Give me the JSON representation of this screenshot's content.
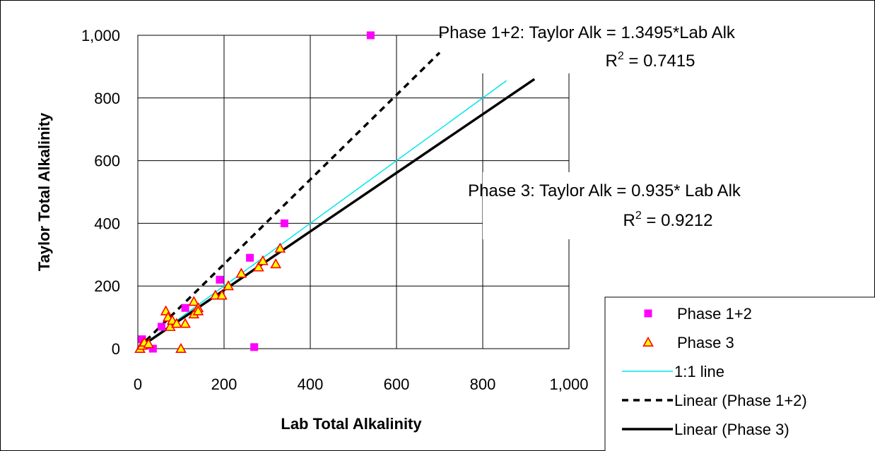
{
  "chart_data": {
    "type": "scatter",
    "xlabel": "Lab Total Alkalinity",
    "ylabel": "Taylor Total Alkalinity",
    "xlim": [
      0,
      1000
    ],
    "ylim": [
      0,
      1000
    ],
    "xticks": [
      "0",
      "200",
      "400",
      "600",
      "800",
      "1,000"
    ],
    "yticks": [
      "0",
      "200",
      "400",
      "600",
      "800",
      "1,000"
    ],
    "grid": true,
    "legend_position": "bottom-right",
    "series": [
      {
        "name": "Phase 1+2",
        "kind": "points",
        "marker": "square",
        "color": "#ff00ff",
        "points": [
          [
            10,
            30
          ],
          [
            20,
            10
          ],
          [
            35,
            0
          ],
          [
            55,
            70
          ],
          [
            110,
            130
          ],
          [
            190,
            220
          ],
          [
            260,
            290
          ],
          [
            340,
            400
          ],
          [
            540,
            1000
          ],
          [
            270,
            5
          ]
        ]
      },
      {
        "name": "Phase 3",
        "kind": "points",
        "marker": "triangle",
        "color": "#ff0000",
        "fill": "#ffff00",
        "points": [
          [
            5,
            0
          ],
          [
            10,
            10
          ],
          [
            15,
            20
          ],
          [
            25,
            15
          ],
          [
            65,
            120
          ],
          [
            70,
            100
          ],
          [
            75,
            70
          ],
          [
            80,
            90
          ],
          [
            90,
            80
          ],
          [
            100,
            0
          ],
          [
            110,
            80
          ],
          [
            130,
            150
          ],
          [
            130,
            110
          ],
          [
            140,
            130
          ],
          [
            140,
            120
          ],
          [
            180,
            170
          ],
          [
            195,
            170
          ],
          [
            210,
            200
          ],
          [
            240,
            240
          ],
          [
            280,
            260
          ],
          [
            290,
            280
          ],
          [
            320,
            270
          ],
          [
            330,
            320
          ]
        ]
      },
      {
        "name": "1:1 line",
        "kind": "line",
        "style": "solid-thin",
        "color": "#00e5ee",
        "points": [
          [
            0,
            0
          ],
          [
            855,
            855
          ]
        ]
      },
      {
        "name": "Linear (Phase 1+2)",
        "kind": "line",
        "style": "dashed",
        "color": "#000000",
        "points": [
          [
            0,
            0
          ],
          [
            700,
            944.65
          ]
        ]
      },
      {
        "name": "Linear (Phase 3)",
        "kind": "line",
        "style": "solid-thick",
        "color": "#000000",
        "points": [
          [
            0,
            0
          ],
          [
            920,
            860.2
          ]
        ]
      }
    ],
    "annotations": {
      "phase12_equation": "Phase 1+2: Taylor Alk = 1.3495*Lab Alk",
      "phase12_r2_label": "R",
      "phase12_r2_sup": "2",
      "phase12_r2_value": " = 0.7415",
      "phase3_equation": "Phase 3: Taylor Alk = 0.935* Lab Alk",
      "phase3_r2_label": "R",
      "phase3_r2_sup": "2",
      "phase3_r2_value": " = 0.9212"
    }
  }
}
